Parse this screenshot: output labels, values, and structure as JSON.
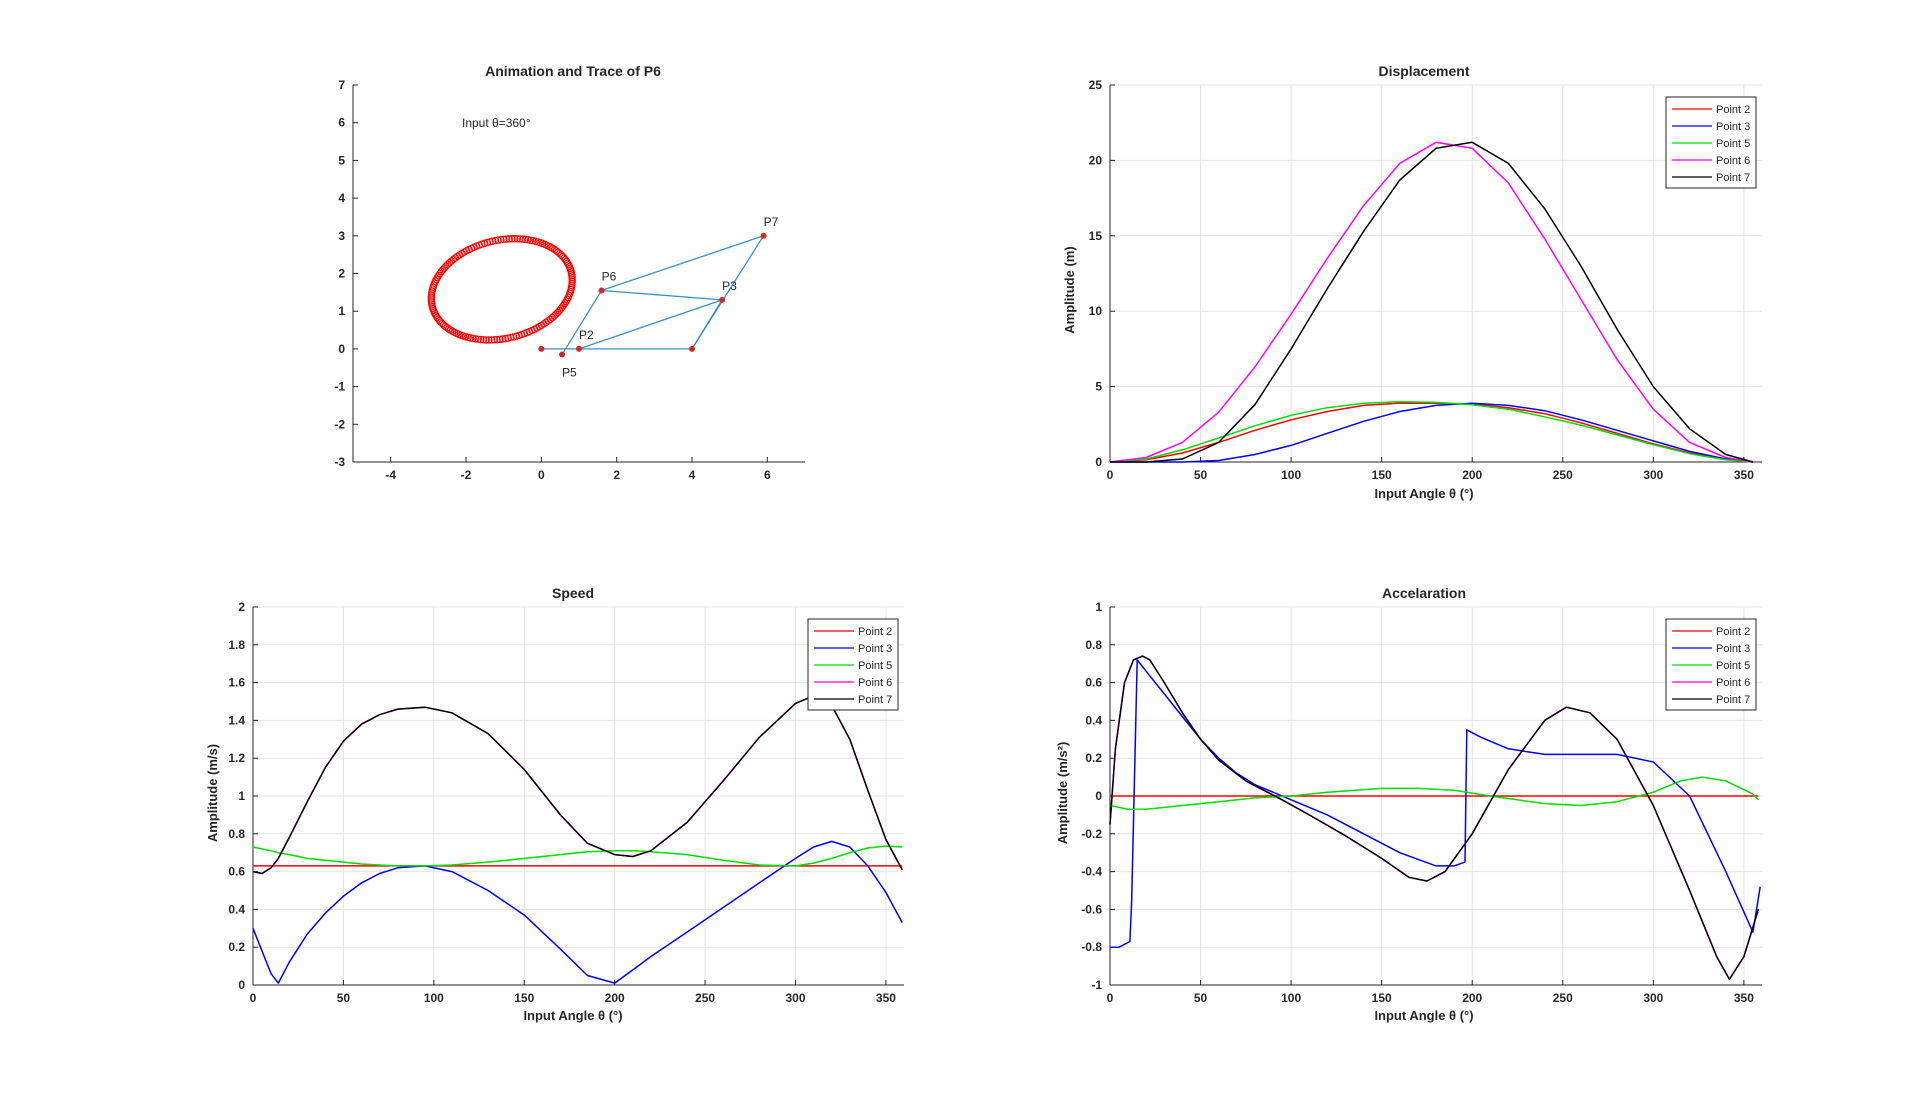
{
  "chart_data": [
    {
      "type": "scatter",
      "title": "Animation and Trace of P6",
      "annotation": "Input θ=360°",
      "xlim": [
        -5,
        7
      ],
      "ylim": [
        -3,
        7
      ],
      "xticks": [
        -4,
        -2,
        0,
        2,
        4,
        6
      ],
      "yticks": [
        -3,
        -2,
        -1,
        0,
        1,
        2,
        3,
        4,
        5,
        6,
        7
      ],
      "grid": false,
      "trace_color": "#ff0000",
      "link_color": "#3a8fc9",
      "joint_color": "#d62728",
      "trace": {
        "center": [
          -1.05,
          1.58
        ],
        "rx": 1.9,
        "ry": 1.3,
        "tilt_deg": 14
      },
      "joints": [
        {
          "label": "",
          "x": 0,
          "y": 0
        },
        {
          "label": "P2",
          "x": 1,
          "y": 0
        },
        {
          "label": "P5",
          "x": 0.55,
          "y": -0.15
        },
        {
          "label": "",
          "x": 4,
          "y": 0
        },
        {
          "label": "P3",
          "x": 4.8,
          "y": 1.3
        },
        {
          "label": "P6",
          "x": 1.6,
          "y": 1.55
        },
        {
          "label": "P7",
          "x": 5.9,
          "y": 3.0
        }
      ],
      "links": [
        [
          0,
          1
        ],
        [
          1,
          3
        ],
        [
          3,
          4
        ],
        [
          4,
          1
        ],
        [
          2,
          5
        ],
        [
          5,
          4
        ],
        [
          5,
          6
        ],
        [
          6,
          3
        ]
      ]
    },
    {
      "type": "line",
      "title": "Displacement",
      "xlabel": "Input Angle  θ (°)",
      "ylabel": "Amplitude (m)",
      "xlim": [
        0,
        360
      ],
      "ylim": [
        0,
        25
      ],
      "xticks": [
        0,
        50,
        100,
        150,
        200,
        250,
        300,
        350
      ],
      "yticks": [
        0,
        5,
        10,
        15,
        20,
        25
      ],
      "grid": true,
      "legend": "top-right",
      "x": [
        0,
        20,
        40,
        60,
        80,
        100,
        120,
        140,
        160,
        180,
        200,
        220,
        240,
        260,
        280,
        300,
        320,
        340,
        355
      ],
      "series": [
        {
          "name": "Point 2",
          "color": "#ff0000",
          "values": [
            0,
            0.15,
            0.6,
            1.3,
            2.1,
            2.8,
            3.35,
            3.75,
            3.9,
            3.9,
            3.85,
            3.6,
            3.2,
            2.6,
            1.9,
            1.2,
            0.6,
            0.2,
            0
          ]
        },
        {
          "name": "Point 3",
          "color": "#0000ff",
          "values": [
            0,
            0,
            0,
            0.1,
            0.5,
            1.1,
            1.9,
            2.7,
            3.35,
            3.75,
            3.9,
            3.75,
            3.4,
            2.8,
            2.1,
            1.4,
            0.7,
            0.2,
            0
          ]
        },
        {
          "name": "Point 5",
          "color": "#00dd00",
          "values": [
            0,
            0.2,
            0.8,
            1.6,
            2.4,
            3.1,
            3.6,
            3.9,
            4.0,
            3.95,
            3.8,
            3.5,
            3.0,
            2.45,
            1.8,
            1.15,
            0.55,
            0.15,
            0
          ]
        },
        {
          "name": "Point 6",
          "color": "#ff00ff",
          "values": [
            0,
            0.3,
            1.3,
            3.3,
            6.3,
            9.8,
            13.5,
            17.0,
            19.8,
            21.2,
            20.8,
            18.5,
            14.8,
            10.8,
            6.8,
            3.5,
            1.3,
            0.3,
            0
          ]
        },
        {
          "name": "Point 7",
          "color": "#000000",
          "values": [
            0,
            0,
            0.2,
            1.3,
            3.8,
            7.5,
            11.5,
            15.3,
            18.7,
            20.8,
            21.2,
            19.8,
            16.8,
            13.0,
            8.8,
            5.0,
            2.2,
            0.5,
            0
          ]
        }
      ]
    },
    {
      "type": "line",
      "title": "Speed",
      "xlabel": "Input Angle  θ (°)",
      "ylabel": "Amplitude (m/s)",
      "xlim": [
        0,
        360
      ],
      "ylim": [
        0,
        2
      ],
      "xticks": [
        0,
        50,
        100,
        150,
        200,
        250,
        300,
        350
      ],
      "yticks": [
        0,
        0.2,
        0.4,
        0.6,
        0.8,
        1,
        1.2,
        1.4,
        1.6,
        1.8,
        2
      ],
      "grid": true,
      "legend": "top-right",
      "x": [
        0,
        5,
        10,
        14,
        20,
        30,
        40,
        50,
        60,
        70,
        80,
        95,
        110,
        130,
        150,
        170,
        185,
        200,
        210,
        220,
        240,
        260,
        280,
        300,
        310,
        320,
        330,
        340,
        350,
        359
      ],
      "series": [
        {
          "name": "Point 2",
          "color": "#ff0000",
          "values": [
            0.63,
            0.63,
            0.63,
            0.63,
            0.63,
            0.63,
            0.63,
            0.63,
            0.63,
            0.63,
            0.63,
            0.63,
            0.63,
            0.63,
            0.63,
            0.63,
            0.63,
            0.63,
            0.63,
            0.63,
            0.63,
            0.63,
            0.63,
            0.63,
            0.63,
            0.63,
            0.63,
            0.63,
            0.63,
            0.63
          ]
        },
        {
          "name": "Point 3",
          "color": "#0000ff",
          "values": [
            0.3,
            0.18,
            0.06,
            0.01,
            0.12,
            0.27,
            0.38,
            0.47,
            0.54,
            0.59,
            0.62,
            0.63,
            0.6,
            0.5,
            0.37,
            0.19,
            0.05,
            0.01,
            0.08,
            0.15,
            0.28,
            0.41,
            0.54,
            0.67,
            0.73,
            0.76,
            0.73,
            0.63,
            0.49,
            0.33
          ]
        },
        {
          "name": "Point 5",
          "color": "#00dd00",
          "values": [
            0.73,
            0.72,
            0.71,
            0.7,
            0.69,
            0.67,
            0.66,
            0.65,
            0.64,
            0.635,
            0.63,
            0.63,
            0.635,
            0.65,
            0.67,
            0.69,
            0.705,
            0.71,
            0.71,
            0.705,
            0.69,
            0.66,
            0.635,
            0.63,
            0.645,
            0.67,
            0.7,
            0.725,
            0.735,
            0.73
          ]
        },
        {
          "name": "Point 6",
          "color": "#ff00ff",
          "values": [
            0.6,
            0.59,
            0.62,
            0.67,
            0.78,
            0.97,
            1.15,
            1.29,
            1.38,
            1.43,
            1.46,
            1.47,
            1.44,
            1.33,
            1.14,
            0.9,
            0.75,
            0.69,
            0.68,
            0.71,
            0.86,
            1.08,
            1.31,
            1.49,
            1.53,
            1.48,
            1.3,
            1.03,
            0.77,
            0.61
          ]
        },
        {
          "name": "Point 7",
          "color": "#000000",
          "values": [
            0.6,
            0.59,
            0.62,
            0.67,
            0.78,
            0.97,
            1.15,
            1.29,
            1.38,
            1.43,
            1.46,
            1.47,
            1.44,
            1.33,
            1.14,
            0.9,
            0.75,
            0.69,
            0.68,
            0.71,
            0.86,
            1.08,
            1.31,
            1.49,
            1.53,
            1.48,
            1.3,
            1.03,
            0.77,
            0.61
          ]
        }
      ]
    },
    {
      "type": "line",
      "title": "Accelaration",
      "xlabel": "Input Angle  θ (°)",
      "ylabel": "Amplitude (m/s²)",
      "xlim": [
        0,
        360
      ],
      "ylim": [
        -1,
        1
      ],
      "xticks": [
        0,
        50,
        100,
        150,
        200,
        250,
        300,
        350
      ],
      "yticks": [
        -1,
        -0.8,
        -0.6,
        -0.4,
        -0.2,
        0,
        0.2,
        0.4,
        0.6,
        0.8,
        1
      ],
      "grid": true,
      "legend": "top-right",
      "series": [
        {
          "name": "Point 2",
          "color": "#ff0000",
          "x": [
            0,
            358
          ],
          "values": [
            0,
            0
          ]
        },
        {
          "name": "Point 3",
          "color": "#0000ff",
          "x": [
            0,
            5,
            11,
            12,
            15,
            20,
            30,
            40,
            50,
            60,
            70,
            80,
            90,
            100,
            120,
            140,
            160,
            180,
            190,
            196,
            197,
            205,
            220,
            240,
            260,
            280,
            300,
            320,
            340,
            355,
            359
          ],
          "values": [
            -0.8,
            -0.8,
            -0.77,
            -0.55,
            0.72,
            0.66,
            0.54,
            0.42,
            0.3,
            0.2,
            0.12,
            0.06,
            0.02,
            -0.02,
            -0.1,
            -0.2,
            -0.3,
            -0.37,
            -0.37,
            -0.35,
            0.35,
            0.31,
            0.25,
            0.22,
            0.22,
            0.22,
            0.18,
            0.0,
            -0.4,
            -0.72,
            -0.48
          ]
        },
        {
          "name": "Point 5",
          "color": "#00dd00",
          "x": [
            0,
            10,
            20,
            40,
            60,
            80,
            100,
            120,
            150,
            170,
            190,
            210,
            240,
            260,
            280,
            300,
            315,
            327,
            340,
            355,
            358
          ],
          "values": [
            -0.05,
            -0.07,
            -0.07,
            -0.05,
            -0.03,
            -0.01,
            0.0,
            0.02,
            0.04,
            0.04,
            0.03,
            0.0,
            -0.04,
            -0.05,
            -0.03,
            0.02,
            0.08,
            0.1,
            0.08,
            0.01,
            -0.02
          ]
        },
        {
          "name": "Point 6",
          "color": "#ff00ff",
          "x": [
            0,
            3,
            8,
            13,
            18,
            22,
            30,
            40,
            50,
            60,
            75,
            95,
            110,
            130,
            150,
            165,
            175,
            185,
            200,
            220,
            240,
            252,
            265,
            280,
            300,
            320,
            335,
            342,
            350,
            358
          ],
          "values": [
            -0.15,
            0.25,
            0.6,
            0.72,
            0.74,
            0.72,
            0.6,
            0.44,
            0.3,
            0.19,
            0.08,
            -0.02,
            -0.1,
            -0.21,
            -0.33,
            -0.43,
            -0.45,
            -0.4,
            -0.2,
            0.14,
            0.4,
            0.47,
            0.44,
            0.3,
            -0.05,
            -0.5,
            -0.85,
            -0.97,
            -0.85,
            -0.6
          ]
        },
        {
          "name": "Point 7",
          "color": "#000000",
          "x": [
            0,
            3,
            8,
            13,
            18,
            22,
            30,
            40,
            50,
            60,
            75,
            95,
            110,
            130,
            150,
            165,
            175,
            185,
            200,
            220,
            240,
            252,
            265,
            280,
            300,
            320,
            335,
            342,
            350,
            358
          ],
          "values": [
            -0.15,
            0.25,
            0.6,
            0.72,
            0.74,
            0.72,
            0.6,
            0.44,
            0.3,
            0.19,
            0.08,
            -0.02,
            -0.1,
            -0.21,
            -0.33,
            -0.43,
            -0.45,
            -0.4,
            -0.2,
            0.14,
            0.4,
            0.47,
            0.44,
            0.3,
            -0.05,
            -0.5,
            -0.85,
            -0.97,
            -0.85,
            -0.6
          ]
        }
      ]
    }
  ]
}
